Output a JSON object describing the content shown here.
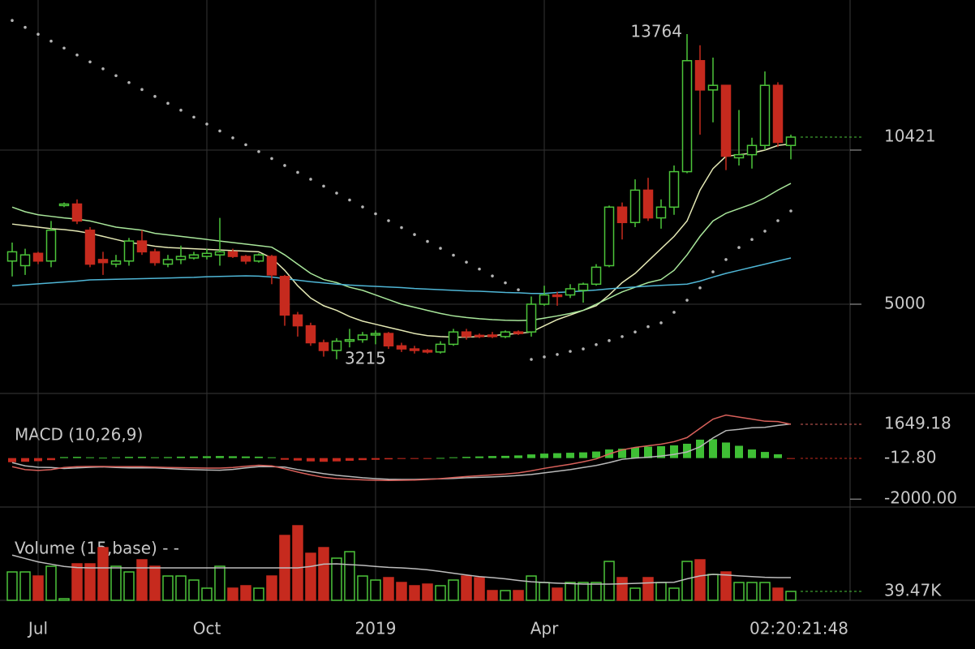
{
  "chart_data": [
    {
      "type": "candlestick",
      "countdown": "02:20:21:48",
      "categories": [
        null,
        null,
        "Jul",
        null,
        null,
        null,
        null,
        null,
        null,
        null,
        null,
        null,
        null,
        null,
        null,
        "Oct",
        null,
        null,
        null,
        null,
        null,
        null,
        null,
        null,
        null,
        null,
        null,
        null,
        "2019",
        null,
        null,
        null,
        null,
        null,
        null,
        null,
        null,
        null,
        null,
        null,
        null,
        "Apr",
        null,
        null,
        null,
        null,
        null,
        null,
        null,
        null,
        null,
        null,
        null,
        null,
        null,
        null,
        null,
        null,
        null,
        null,
        null
      ],
      "open": [
        6400,
        6250,
        6650,
        6400,
        8200,
        8250,
        7400,
        6450,
        6300,
        6400,
        7050,
        6700,
        6300,
        6450,
        6500,
        6550,
        6600,
        6700,
        6550,
        6400,
        6550,
        5900,
        4650,
        4300,
        3750,
        3500,
        3800,
        3850,
        4000,
        4050,
        3650,
        3550,
        3500,
        3450,
        3700,
        4100,
        3990,
        4000,
        3950,
        4100,
        4100,
        5000,
        5300,
        5300,
        5450,
        5650,
        6250,
        8150,
        7650,
        8700,
        7800,
        8150,
        9300,
        12900,
        11950,
        12100,
        9750,
        9850,
        10150,
        12100,
        10150
      ],
      "high": [
        7000,
        6800,
        6700,
        7700,
        8300,
        8400,
        7500,
        6700,
        6600,
        7150,
        7400,
        6800,
        6600,
        6900,
        6700,
        6800,
        7800,
        6800,
        6600,
        6650,
        6600,
        5950,
        4750,
        4400,
        3850,
        3900,
        4200,
        4100,
        4150,
        4100,
        3750,
        3650,
        3550,
        3800,
        4200,
        4200,
        4050,
        4100,
        4150,
        4150,
        5250,
        5600,
        5400,
        5650,
        5700,
        6300,
        8200,
        8300,
        9050,
        9100,
        8400,
        9500,
        13764,
        13400,
        13000,
        12100,
        11300,
        10400,
        12550,
        12200,
        10500
      ],
      "low": [
        5900,
        5950,
        6300,
        6200,
        8150,
        7600,
        6200,
        5950,
        6200,
        6250,
        6600,
        6250,
        6200,
        6300,
        6450,
        6450,
        6250,
        6500,
        6300,
        6350,
        5650,
        4300,
        3950,
        3650,
        3300,
        3215,
        3600,
        3750,
        3700,
        3550,
        3450,
        3400,
        3400,
        3400,
        3650,
        3850,
        3900,
        3900,
        3900,
        4000,
        3950,
        4950,
        4950,
        5200,
        5050,
        5600,
        6200,
        7100,
        7500,
        7700,
        7450,
        7900,
        9250,
        10500,
        10900,
        9350,
        9500,
        9400,
        10000,
        10100,
        9700
      ],
      "close": [
        6700,
        6600,
        6400,
        7400,
        8250,
        7700,
        6300,
        6350,
        6400,
        7050,
        6700,
        6350,
        6450,
        6550,
        6600,
        6650,
        6700,
        6550,
        6400,
        6600,
        5950,
        4650,
        4300,
        3750,
        3500,
        3800,
        3850,
        4000,
        4050,
        3650,
        3550,
        3500,
        3450,
        3700,
        4100,
        3950,
        3950,
        3950,
        4100,
        4050,
        5000,
        5300,
        5250,
        5500,
        5650,
        6200,
        8150,
        7650,
        8700,
        7800,
        8150,
        9300,
        12900,
        11950,
        12100,
        9800,
        9850,
        10150,
        12100,
        10250,
        10421
      ],
      "up_color": "#4cc43a",
      "down_color": "#c62a1e",
      "lines": [
        {
          "color": "#e4e8b4",
          "values": [
            7600,
            7550,
            7500,
            7450,
            7420,
            7370,
            7300,
            7200,
            7100,
            7000,
            6950,
            6880,
            6840,
            6820,
            6800,
            6780,
            6760,
            6740,
            6720,
            6700,
            6500,
            6100,
            5600,
            5200,
            4950,
            4800,
            4600,
            4450,
            4350,
            4250,
            4150,
            4050,
            3980,
            3950,
            3930,
            3930,
            3950,
            3980,
            4020,
            4050,
            4100,
            4300,
            4500,
            4650,
            4800,
            4950,
            5300,
            5700,
            6000,
            6400,
            6800,
            7200,
            7700,
            8700,
            9400,
            9800,
            9850,
            9900,
            10000,
            10150,
            10200
          ]
        },
        {
          "color": "#a8e69a",
          "values": [
            8150,
            8000,
            7900,
            7850,
            7800,
            7760,
            7700,
            7600,
            7500,
            7450,
            7400,
            7300,
            7250,
            7200,
            7150,
            7100,
            7050,
            7000,
            6950,
            6900,
            6850,
            6600,
            6300,
            6000,
            5800,
            5700,
            5550,
            5450,
            5300,
            5150,
            5000,
            4900,
            4800,
            4700,
            4620,
            4570,
            4530,
            4500,
            4480,
            4470,
            4480,
            4550,
            4620,
            4700,
            4800,
            5000,
            5200,
            5400,
            5550,
            5700,
            5800,
            6100,
            6600,
            7200,
            7700,
            7950,
            8100,
            8250,
            8450,
            8700,
            8920
          ]
        },
        {
          "color": "#4fb6d6",
          "values": [
            5600,
            5630,
            5660,
            5690,
            5720,
            5750,
            5790,
            5800,
            5810,
            5820,
            5830,
            5840,
            5850,
            5860,
            5870,
            5890,
            5900,
            5910,
            5920,
            5910,
            5880,
            5830,
            5780,
            5730,
            5690,
            5650,
            5620,
            5600,
            5580,
            5560,
            5540,
            5510,
            5490,
            5470,
            5450,
            5430,
            5420,
            5400,
            5380,
            5370,
            5350,
            5350,
            5380,
            5400,
            5430,
            5460,
            5500,
            5530,
            5560,
            5590,
            5610,
            5630,
            5650,
            5750,
            5880,
            6000,
            6100,
            6200,
            6300,
            6400,
            6500
          ]
        }
      ],
      "sar": {
        "color": "#b4b4b4",
        "values": [
          14205,
          13981,
          13757,
          13533,
          13309,
          13085,
          12861,
          12637,
          12413,
          12189,
          11965,
          11741,
          11517,
          11293,
          11069,
          10845,
          10621,
          10397,
          10173,
          9949,
          9725,
          9501,
          9277,
          9053,
          8829,
          8605,
          8381,
          8157,
          7933,
          7709,
          7485,
          7261,
          7037,
          6813,
          6589,
          6365,
          6141,
          5917,
          5693,
          5469,
          3210,
          3290,
          3370,
          3470,
          3550,
          3690,
          3820,
          3950,
          4100,
          4270,
          4395,
          4737,
          5130,
          5530,
          6050,
          6450,
          6840,
          7100,
          7370,
          7710,
          8025
        ]
      },
      "ylim": [
        2105,
        14868
      ],
      "yticks": [
        5000,
        {
          "value": 10000,
          "label": null
        }
      ],
      "grid": true
    },
    {
      "type": "macd",
      "title": "MACD (10,26,9)",
      "ylim": [
        -2387,
        2361
      ],
      "yticks": [
        {
          "value": -2000,
          "label": "-2000.00"
        }
      ],
      "grid": false,
      "macd": {
        "color": "#d8605a",
        "values": [
          -420,
          -560,
          -600,
          -560,
          -460,
          -420,
          -410,
          -410,
          -420,
          -420,
          -420,
          -440,
          -460,
          -470,
          -480,
          -490,
          -490,
          -460,
          -400,
          -350,
          -380,
          -520,
          -680,
          -820,
          -940,
          -1000,
          -1030,
          -1060,
          -1080,
          -1090,
          -1080,
          -1070,
          -1040,
          -1000,
          -950,
          -900,
          -860,
          -820,
          -780,
          -720,
          -620,
          -500,
          -400,
          -300,
          -180,
          -40,
          200,
          400,
          520,
          600,
          680,
          800,
          1000,
          1450,
          1900,
          2100,
          2000,
          1900,
          1800,
          1780,
          1649.18
        ]
      },
      "signal": {
        "color": "#b8b8b8",
        "values": [
          -220,
          -380,
          -450,
          -460,
          -510,
          -480,
          -450,
          -430,
          -460,
          -480,
          -480,
          -480,
          -510,
          -540,
          -560,
          -580,
          -590,
          -550,
          -480,
          -420,
          -420,
          -440,
          -560,
          -660,
          -760,
          -840,
          -900,
          -960,
          -1000,
          -1030,
          -1040,
          -1040,
          -1020,
          -1010,
          -990,
          -960,
          -940,
          -920,
          -890,
          -850,
          -800,
          -720,
          -640,
          -560,
          -460,
          -360,
          -220,
          -60,
          0,
          40,
          100,
          180,
          300,
          550,
          980,
          1340,
          1400,
          1480,
          1500,
          1595,
          1661.98
        ]
      },
      "histogram": {
        "up_color": "#3fbf35",
        "down_color": "#c62a1e",
        "values": [
          -200,
          -180,
          -150,
          -100,
          50,
          60,
          40,
          20,
          40,
          60,
          60,
          40,
          50,
          70,
          80,
          90,
          100,
          90,
          80,
          70,
          40,
          -80,
          -120,
          -160,
          -180,
          -160,
          -130,
          -100,
          -80,
          -60,
          -40,
          -30,
          -20,
          10,
          40,
          60,
          80,
          100,
          110,
          130,
          180,
          220,
          240,
          260,
          280,
          320,
          420,
          460,
          520,
          560,
          580,
          620,
          700,
          900,
          920,
          760,
          600,
          420,
          300,
          185,
          -12.8
        ],
        "value_labels": [
          null,
          null,
          null,
          null,
          null,
          null,
          null,
          null,
          null,
          null,
          null,
          null,
          null,
          null,
          null,
          null,
          null,
          null,
          null,
          null,
          null,
          null,
          null,
          null,
          null,
          null,
          null,
          null,
          null,
          null,
          null,
          null,
          null,
          null,
          null,
          null,
          null,
          null,
          null,
          null,
          null,
          null,
          null,
          null,
          null,
          null,
          null,
          null,
          null,
          null,
          null,
          null,
          null,
          null,
          null,
          null,
          null,
          null,
          null,
          null,
          "-12.80"
        ]
      }
    },
    {
      "type": "volume",
      "title": "Volume (15,base) - -",
      "ylim": [
        0,
        341000
      ],
      "values": [
        125600,
        125600,
        107600,
        150700,
        7200,
        161500,
        161500,
        233200,
        150700,
        125600,
        179400,
        150700,
        107600,
        107600,
        89700,
        53800,
        150700,
        53800,
        64600,
        53800,
        107600,
        287000,
        330100,
        208100,
        233200,
        186600,
        215300,
        107600,
        89700,
        100500,
        78900,
        64600,
        71800,
        64600,
        89700,
        107600,
        100500,
        43100,
        43100,
        43100,
        107600,
        78900,
        53800,
        78900,
        78900,
        78900,
        172200,
        100500,
        53800,
        100500,
        78900,
        53800,
        172200,
        179400,
        114800,
        125600,
        78900,
        78900,
        78900,
        53800,
        39470
      ],
      "value_labels": [
        null,
        null,
        null,
        null,
        null,
        null,
        null,
        null,
        null,
        null,
        null,
        null,
        null,
        null,
        null,
        null,
        null,
        null,
        null,
        null,
        null,
        null,
        null,
        null,
        null,
        null,
        null,
        null,
        null,
        null,
        null,
        null,
        null,
        null,
        null,
        null,
        null,
        null,
        null,
        null,
        null,
        null,
        null,
        null,
        null,
        null,
        null,
        null,
        null,
        null,
        null,
        null,
        null,
        null,
        null,
        null,
        null,
        null,
        null,
        null,
        "39.47K"
      ],
      "ma": {
        "color": "#bdbdbd",
        "values": [
          200000,
          185000,
          170000,
          160000,
          150000,
          145000,
          143500,
          143500,
          143500,
          143500,
          143500,
          143500,
          143500,
          143500,
          143500,
          143500,
          143500,
          143500,
          143500,
          143500,
          143500,
          143500,
          143500,
          150000,
          160000,
          161500,
          158000,
          155000,
          150000,
          146000,
          143500,
          140000,
          135000,
          128000,
          120000,
          112000,
          105000,
          100500,
          95000,
          88000,
          82000,
          78900,
          76000,
          74000,
          72000,
          71800,
          72000,
          73000,
          75000,
          77000,
          78900,
          80000,
          95000,
          108000,
          114800,
          112000,
          108000,
          105000,
          102000,
          100500,
          100500
        ]
      }
    }
  ]
}
